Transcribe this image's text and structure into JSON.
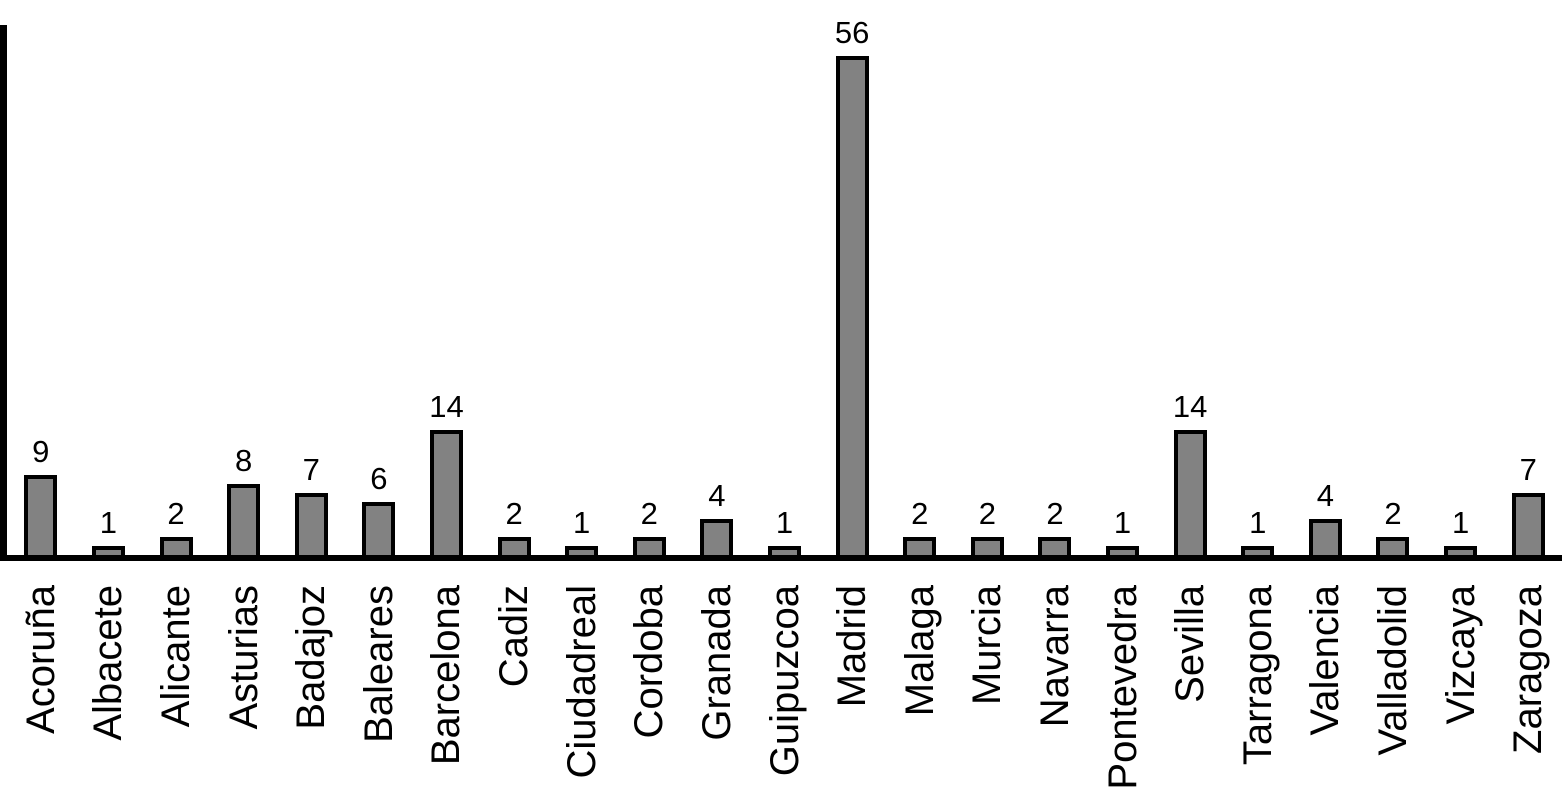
{
  "chart_data": {
    "type": "bar",
    "categories": [
      "Acoruña",
      "Albacete",
      "Alicante",
      "Asturias",
      "Badajoz",
      "Baleares",
      "Barcelona",
      "Cadiz",
      "Ciudadreal",
      "Cordoba",
      "Granada",
      "Guipuzcoa",
      "Madrid",
      "Malaga",
      "Murcia",
      "Navarra",
      "Pontevedra",
      "Sevilla",
      "Tarragona",
      "Valencia",
      "Valladolid",
      "Vizcaya",
      "Zaragoza"
    ],
    "values": [
      9,
      1,
      2,
      8,
      7,
      6,
      14,
      2,
      1,
      2,
      4,
      1,
      56,
      2,
      2,
      2,
      1,
      14,
      1,
      4,
      2,
      1,
      7
    ],
    "bar_value_labels_shown": true,
    "x_tick_rotation_degrees": 90,
    "ylim": [
      0,
      60
    ],
    "grid": false,
    "legend": "none",
    "colors": {
      "bar_fill": "#828282",
      "bar_edge": "#000000",
      "axis": "#000000",
      "text": "#000000",
      "background": "#ffffff"
    }
  }
}
